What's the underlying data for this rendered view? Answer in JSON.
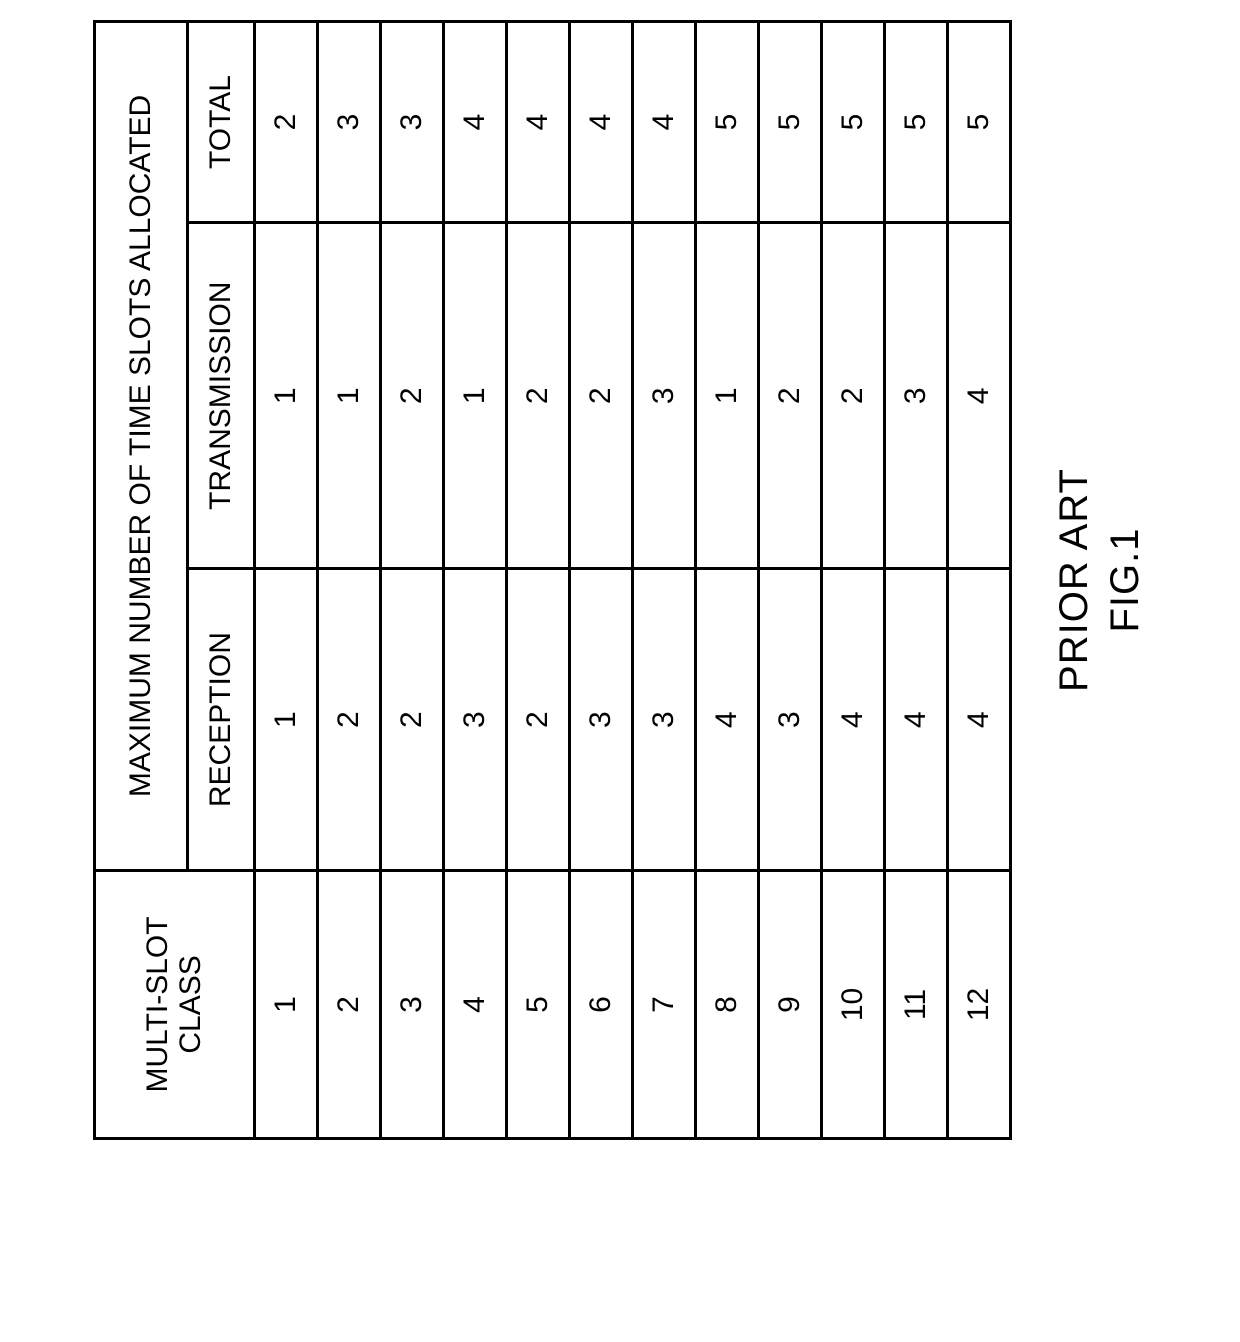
{
  "table": {
    "header": {
      "class_label_line1": "MULTI-SLOT",
      "class_label_line2": "CLASS",
      "group_label": "MAXIMUM NUMBER OF TIME SLOTS ALLOCATED",
      "reception_label": "RECEPTION",
      "transmission_label": "TRANSMISSION",
      "total_label": "TOTAL"
    },
    "rows": [
      {
        "class": "1",
        "rx": "1",
        "tx": "1",
        "total": "2"
      },
      {
        "class": "2",
        "rx": "2",
        "tx": "1",
        "total": "3"
      },
      {
        "class": "3",
        "rx": "2",
        "tx": "2",
        "total": "3"
      },
      {
        "class": "4",
        "rx": "3",
        "tx": "1",
        "total": "4"
      },
      {
        "class": "5",
        "rx": "2",
        "tx": "2",
        "total": "4"
      },
      {
        "class": "6",
        "rx": "3",
        "tx": "2",
        "total": "4"
      },
      {
        "class": "7",
        "rx": "3",
        "tx": "3",
        "total": "4"
      },
      {
        "class": "8",
        "rx": "4",
        "tx": "1",
        "total": "5"
      },
      {
        "class": "9",
        "rx": "3",
        "tx": "2",
        "total": "5"
      },
      {
        "class": "10",
        "rx": "4",
        "tx": "2",
        "total": "5"
      },
      {
        "class": "11",
        "rx": "4",
        "tx": "3",
        "total": "5"
      },
      {
        "class": "12",
        "rx": "4",
        "tx": "4",
        "total": "5"
      }
    ],
    "border_color": "#000000",
    "background_color": "#ffffff",
    "font_size_header": 30,
    "font_size_cell": 30
  },
  "caption": {
    "line1": "PRIOR ART",
    "line2": "FIG.1"
  }
}
